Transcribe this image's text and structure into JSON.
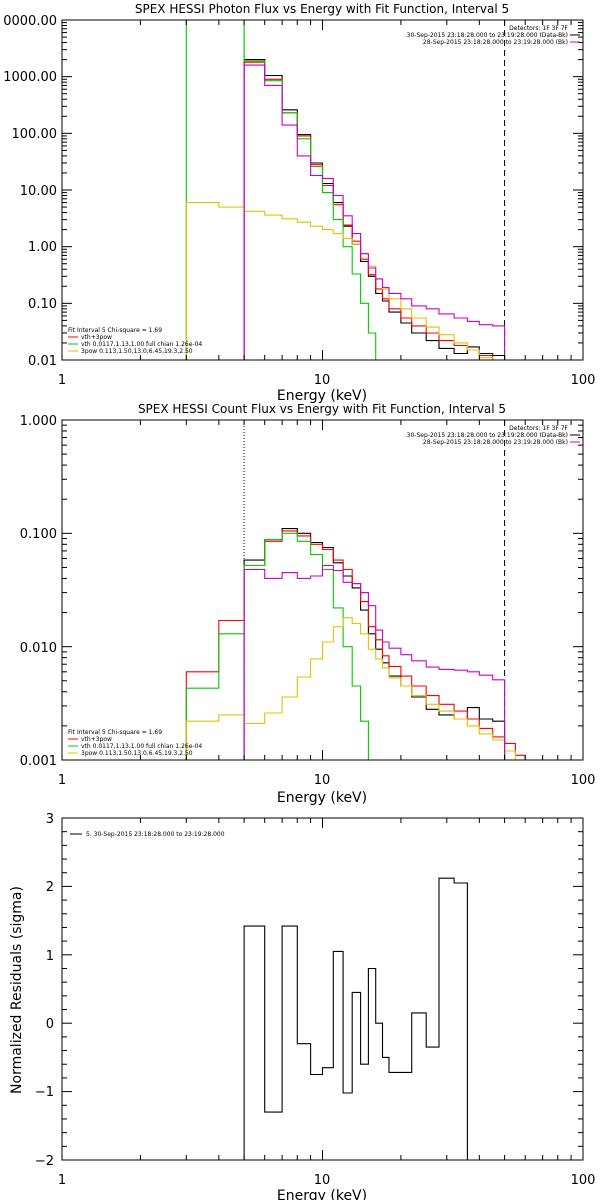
{
  "chart_data": [
    {
      "type": "line",
      "title": "SPEX HESSI Photon Flux vs Energy with Fit Function, Interval 5",
      "xlabel": "Energy (keV)",
      "ylabel": "",
      "xscale": "log",
      "yscale": "log",
      "xlim": [
        1,
        100
      ],
      "ylim": [
        0.01,
        10000
      ],
      "xticks": [
        "1",
        "10",
        "100"
      ],
      "yticks": [
        "0000.00",
        "1000.00",
        "100.00",
        "10.00",
        "1.00",
        "0.10",
        "0.01"
      ],
      "header": {
        "detectors": "Detectors: 1F 3F 7F",
        "line1": "30-Sep-2015 23:18:28.000 to 23:19:28.000 (Data-Bk)",
        "line2": "28-Sep-2015 23:18:28.000 to 23:19:28.000 (Bk)"
      },
      "legend": {
        "header": "Fit Interval 5   Chi-square = 1.69",
        "entries": [
          "vth+3pow",
          "vth 0.0117,1.13,1.00  full chian 1.26e-04",
          "3pow 0.113,1.50,13.0,6.45,19.3,2.50"
        ]
      },
      "vlines": [
        {
          "x": 5.0,
          "style": "dotted"
        },
        {
          "x": 50.0,
          "style": "dashed"
        }
      ],
      "edges": [
        3.0,
        4.0,
        5.0,
        6.0,
        7.0,
        8.0,
        9.0,
        10.0,
        11.0,
        12.0,
        13.0,
        14.0,
        15.0,
        16.0,
        17.0,
        18.0,
        20.0,
        22.0,
        25.0,
        28.0,
        32.0,
        36.0,
        40.0,
        45.0,
        50.0
      ],
      "series": [
        {
          "name": "Data-Bk",
          "color": "#000000",
          "start": 2,
          "values": [
            2000,
            1050,
            260,
            95,
            30,
            13,
            6.0,
            2.3,
            1.1,
            0.55,
            0.3,
            0.15,
            0.11,
            0.07,
            0.045,
            0.03,
            0.022,
            0.016,
            0.013,
            0.017,
            0.013,
            0.012
          ]
        },
        {
          "name": "vth+3pow",
          "color": "#ff0000",
          "start": 2,
          "values": [
            1800,
            900,
            230,
            90,
            28,
            12,
            5.5,
            2.4,
            1.25,
            0.6,
            0.32,
            0.18,
            0.12,
            0.08,
            0.055,
            0.04,
            0.03,
            0.022,
            0.018,
            0.015,
            0.012,
            0.01
          ]
        },
        {
          "name": "vth",
          "color": "#00cc00",
          "start": 0,
          "values": [
            10000,
            10000,
            1900,
            850,
            230,
            80,
            26,
            9,
            3.0,
            1.0,
            0.33,
            0.1,
            0.03,
            0.009,
            0.009,
            0.009,
            0.009,
            0.009,
            0.009,
            0.009,
            0.009,
            0.009,
            0.009,
            0.009
          ]
        },
        {
          "name": "3pow",
          "color": "#e6c000",
          "start": 0,
          "values": [
            6,
            5,
            4.2,
            3.6,
            3.1,
            2.7,
            2.3,
            2.0,
            1.7,
            1.4,
            1.1,
            0.75,
            0.45,
            0.27,
            0.18,
            0.12,
            0.08,
            0.055,
            0.038,
            0.028,
            0.02,
            0.015,
            0.011,
            0.009
          ]
        },
        {
          "name": "Bk",
          "color": "#cc00cc",
          "start": 2,
          "values": [
            1600,
            700,
            140,
            40,
            18,
            16,
            8.0,
            3.5,
            1.7,
            0.75,
            0.42,
            0.27,
            0.19,
            0.15,
            0.12,
            0.09,
            0.08,
            0.065,
            0.055,
            0.048,
            0.042,
            0.04
          ]
        }
      ]
    },
    {
      "type": "line",
      "title": "SPEX HESSI Count Flux vs Energy with Fit Function, Interval 5",
      "xlabel": "Energy (keV)",
      "ylabel": "",
      "xscale": "log",
      "yscale": "log",
      "xlim": [
        1,
        100
      ],
      "ylim": [
        0.001,
        1.0
      ],
      "xticks": [
        "1",
        "10",
        "100"
      ],
      "yticks": [
        "1.000",
        "0.100",
        "0.010",
        "0.001"
      ],
      "header": {
        "detectors": "Detectors: 1F 3F 7F",
        "line1": "30-Sep-2015 23:18:28.000 to 23:19:28.000 (Data-Bk)",
        "line2": "28-Sep-2015 23:18:28.000 to 23:19:28.000 (Bk)"
      },
      "legend": {
        "header": "Fit Interval 5   Chi-square = 1.69",
        "entries": [
          "vth+3pow",
          "vth 0.0117,1.13,1.00  full chian 1.26e-04",
          "3pow 0.113,1.50,13.0,6.45,19.3,2.50"
        ]
      },
      "vlines": [
        {
          "x": 5.0,
          "style": "dotted"
        },
        {
          "x": 50.0,
          "style": "dashed"
        }
      ],
      "edges": [
        3.0,
        4.0,
        5.0,
        6.0,
        7.0,
        8.0,
        9.0,
        10.0,
        11.0,
        12.0,
        13.0,
        14.0,
        15.0,
        16.0,
        17.0,
        18.0,
        20.0,
        22.0,
        25.0,
        28.0,
        32.0,
        36.0,
        40.0,
        45.0,
        50.0,
        55.0,
        60.0
      ],
      "series": [
        {
          "name": "Data-Bk",
          "color": "#000000",
          "start": 2,
          "values": [
            0.058,
            0.088,
            0.11,
            0.1,
            0.083,
            0.075,
            0.055,
            0.042,
            0.033,
            0.021,
            0.013,
            0.0095,
            0.0072,
            0.0055,
            0.0045,
            0.0036,
            0.0028,
            0.0025,
            0.0023,
            0.0029,
            0.0023,
            0.0022
          ]
        },
        {
          "name": "vth+3pow",
          "color": "#ff0000",
          "start": 0,
          "values": [
            0.006,
            0.017,
            0.052,
            0.085,
            0.105,
            0.095,
            0.08,
            0.072,
            0.058,
            0.048,
            0.036,
            0.025,
            0.015,
            0.0115,
            0.0083,
            0.0067,
            0.0055,
            0.0045,
            0.0037,
            0.0031,
            0.0027,
            0.0023,
            0.0019,
            0.0016,
            0.0014,
            0.0011
          ]
        },
        {
          "name": "vth",
          "color": "#00cc00",
          "start": 0,
          "values": [
            0.0043,
            0.013,
            0.052,
            0.088,
            0.1,
            0.085,
            0.065,
            0.048,
            0.022,
            0.01,
            0.0045,
            0.0022,
            0.0009,
            0.0009,
            0.0009,
            0.0009,
            0.0009,
            0.0009,
            0.0009,
            0.0009,
            0.0009,
            0.0009,
            0.0009,
            0.0009,
            0.0009,
            0.0009
          ]
        },
        {
          "name": "3pow",
          "color": "#e6c000",
          "start": 0,
          "values": [
            0.0022,
            0.0025,
            0.0021,
            0.0026,
            0.0036,
            0.0054,
            0.0078,
            0.011,
            0.015,
            0.018,
            0.016,
            0.013,
            0.0095,
            0.0078,
            0.0065,
            0.0053,
            0.0045,
            0.0037,
            0.0031,
            0.0027,
            0.0023,
            0.002,
            0.0017,
            0.0015,
            0.0012,
            0.001
          ]
        },
        {
          "name": "Bk",
          "color": "#cc00cc",
          "start": 2,
          "values": [
            0.048,
            0.04,
            0.045,
            0.04,
            0.042,
            0.052,
            0.047,
            0.037,
            0.036,
            0.03,
            0.023,
            0.014,
            0.011,
            0.0097,
            0.0085,
            0.0075,
            0.0066,
            0.0063,
            0.0062,
            0.006,
            0.0056,
            0.0051
          ]
        }
      ]
    },
    {
      "type": "line",
      "title": "",
      "xlabel": "Energy (keV)",
      "ylabel": "Normalized Residuals (sigma)",
      "xscale": "log",
      "yscale": "linear",
      "xlim": [
        1,
        100
      ],
      "ylim": [
        -2,
        3
      ],
      "xticks": [
        "1",
        "10",
        "100"
      ],
      "yticks": [
        "3",
        "2",
        "1",
        "0",
        "−1",
        "−2"
      ],
      "legend": {
        "entries": [
          "5. 30-Sep-2015 23:18:28.000 to 23:19:28.000"
        ]
      },
      "edges": [
        5.0,
        6.0,
        7.0,
        8.0,
        9.0,
        10.0,
        11.0,
        12.0,
        13.0,
        14.0,
        15.0,
        16.0,
        17.0,
        18.0,
        20.0,
        22.0,
        25.0,
        28.0,
        32.0,
        36.0,
        40.0,
        45.0,
        50.0
      ],
      "series": [
        {
          "name": "",
          "color": "#000000",
          "start": 0,
          "values": [
            1.42,
            -1.3,
            1.42,
            -0.3,
            -0.75,
            -0.65,
            1.05,
            -1.02,
            0.45,
            -0.6,
            0.8,
            0.0,
            -0.5,
            -0.72,
            -0.72,
            0.15,
            -0.35,
            2.12,
            2.05
          ]
        }
      ]
    }
  ]
}
